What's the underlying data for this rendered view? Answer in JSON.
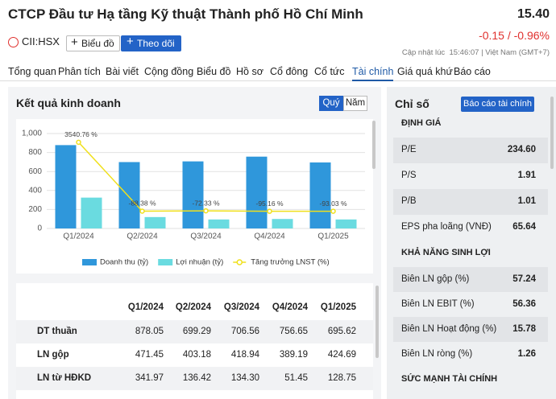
{
  "header": {
    "title": "CTCP Đầu tư Hạ tầng Kỹ thuật Thành phố Hồ Chí Minh",
    "price": "15.40",
    "change": "-0.15 / -0.96%",
    "ticker": "CII:HSX",
    "buttons": [
      "Biểu đồ",
      "Theo dõi"
    ],
    "updated": "Cập nhật lúc  15:46:07 | Việt Nam (GMT+7)"
  },
  "tabs": {
    "items": [
      "Tổng quan",
      "Phân tích",
      "Bài viết",
      "Cộng đồng",
      "Biểu đồ",
      "Hồ sơ",
      "Cổ đông",
      "Cổ tức",
      "Tài chính",
      "Giá quá khứ",
      "Báo cáo"
    ],
    "active": 8
  },
  "results": {
    "title": "Kết quả kinh doanh",
    "toggle": [
      "Quý",
      "Năm"
    ],
    "toggle_active": 0,
    "chart_data": {
      "type": "bar",
      "categories": [
        "Q1/2024",
        "Q2/2024",
        "Q3/2024",
        "Q4/2024",
        "Q1/2025"
      ],
      "series": [
        {
          "name": "Doanh thu (tỷ)",
          "color": "#2f97db",
          "values": [
            878.05,
            699.29,
            706.56,
            756.65,
            695.62
          ]
        },
        {
          "name": "Lợi nhuận (tỷ)",
          "color": "#6adbe0",
          "values": [
            325,
            120,
            95,
            100,
            95
          ]
        },
        {
          "name": "Tăng trưởng LNST (%)",
          "color": "#f0e01c",
          "type": "line",
          "axis": "y2",
          "values": [
            3540.76,
            -88.38,
            -72.33,
            -95.16,
            -93.03
          ],
          "value_labels": [
            "3540.76 %",
            "-88.38 %",
            "-72.33 %",
            "-95.16 %",
            "-93.03 %"
          ]
        }
      ],
      "ylim": [
        0,
        1000
      ],
      "yticks": [
        0,
        200,
        400,
        600,
        800,
        {
          "value": 1000,
          "label": "1,000"
        }
      ],
      "y2lim": [
        -1000,
        4000
      ],
      "grid": true,
      "legend": "bottom"
    },
    "table": {
      "header": [
        "Q1/2024",
        "Q2/2024",
        "Q3/2024",
        "Q4/2024",
        "Q1/2025"
      ],
      "rows": [
        [
          "DT thuần",
          "878.05",
          "699.29",
          "706.56",
          "756.65",
          "695.62"
        ],
        [
          "LN gộp",
          "471.45",
          "403.18",
          "418.94",
          "389.19",
          "424.69"
        ],
        [
          "LN từ HĐKD",
          "341.97",
          "136.42",
          "134.30",
          "51.45",
          "128.75"
        ]
      ]
    }
  },
  "ratios": {
    "title": "Chỉ số",
    "button": "Báo cáo tài chính",
    "sections": [
      {
        "title": "ĐỊNH GIÁ",
        "rows": [
          [
            "P/E",
            "234.60"
          ],
          [
            "P/S",
            "1.91"
          ],
          [
            "P/B",
            "1.01"
          ],
          [
            "EPS pha loãng (VNĐ)",
            "65.64"
          ]
        ]
      },
      {
        "title": "KHẢ NĂNG SINH LỢI",
        "rows": [
          [
            "Biên LN gộp (%)",
            "57.24"
          ],
          [
            "Biên LN EBIT (%)",
            "56.36"
          ],
          [
            "Biên LN Hoạt động (%)",
            "15.78"
          ],
          [
            "Biên LN ròng (%)",
            "1.26"
          ]
        ]
      },
      {
        "title": "SỨC MẠNH TÀI CHÍNH",
        "rows": []
      }
    ]
  }
}
